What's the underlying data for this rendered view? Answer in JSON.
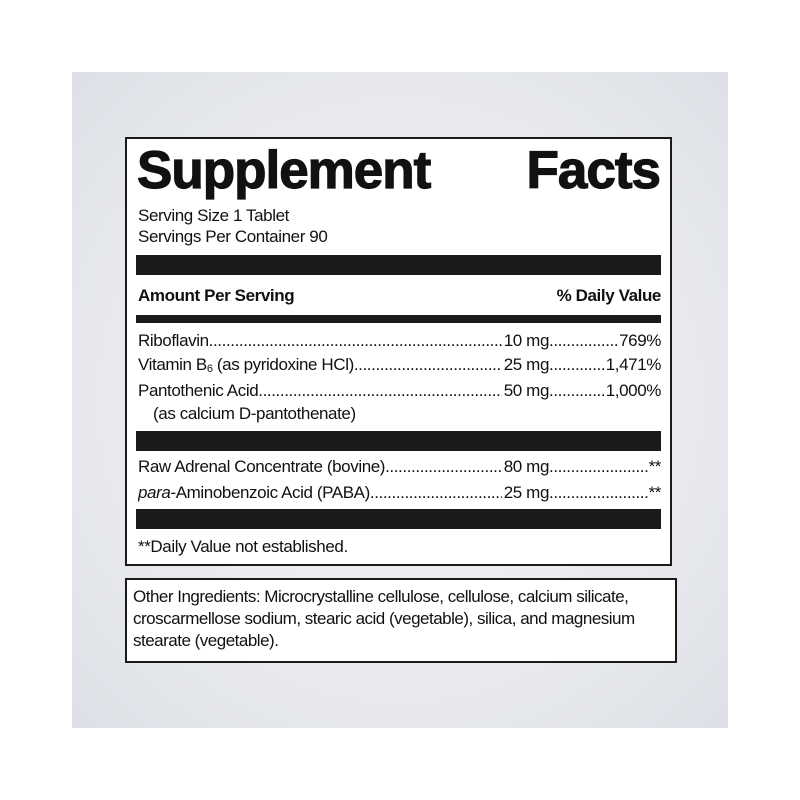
{
  "label": {
    "title_word1": "Supplement",
    "title_word2": "Facts",
    "serving_size": "Serving Size 1 Tablet",
    "servings_per_container": "Servings Per Container 90",
    "amount_header": "Amount Per Serving",
    "dv_header": "% Daily Value",
    "vitamins": [
      {
        "name": "Riboflavin",
        "amount": "10 mg",
        "dv": "769%"
      },
      {
        "name_pre": "Vitamin B",
        "name_sub": "6",
        "name_post": " (as pyridoxine HCl)",
        "amount": "25 mg",
        "dv": "1,471%"
      },
      {
        "name": "Pantothenic Acid",
        "amount": "50 mg",
        "dv": "1,000%",
        "note": "(as calcium D-pantothenate)"
      }
    ],
    "others": [
      {
        "name": "Raw Adrenal Concentrate (bovine)",
        "amount": "80 mg",
        "dv": "**"
      },
      {
        "name_italic": "para",
        "name": "-Aminobenzoic Acid (PABA)",
        "amount": "25 mg",
        "dv": "**"
      }
    ],
    "footnote": "**Daily Value not established."
  },
  "ingredients": {
    "text": "Other Ingredients: Microcrystalline cellulose, cellulose, calcium silicate, croscarmellose sodium, stearic acid (vegetable), silica, and magnesium stearate (vegetable)."
  }
}
